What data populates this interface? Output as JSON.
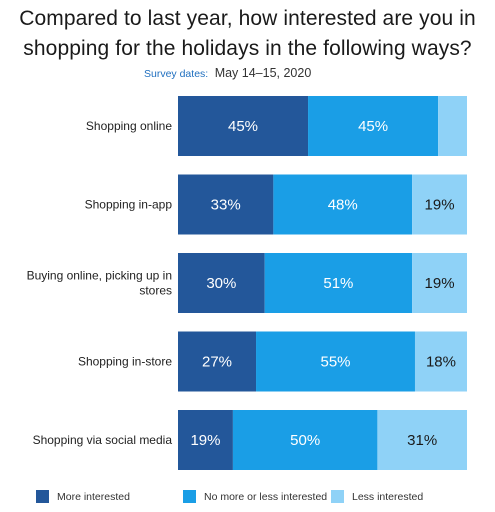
{
  "title": "Compared to last year, how interested are you in shopping for the holidays in the following ways?",
  "survey_label": "Survey dates:",
  "survey_dates": "May 14–15, 2020",
  "colors": {
    "more_interested": "#23579a",
    "no_more_or_less": "#1a9ee6",
    "less_interested": "#8fd2f7"
  },
  "chart_data": {
    "type": "bar",
    "orientation": "horizontal",
    "stacked": true,
    "title": "Compared to last year, how interested are you in shopping for the holidays in the following ways?",
    "categories": [
      [
        "Shopping online"
      ],
      [
        "Shopping in-app"
      ],
      [
        "Buying online, picking up in",
        "stores"
      ],
      [
        "Shopping in-store"
      ],
      [
        "Shopping via social media"
      ]
    ],
    "series": [
      {
        "name": "More interested",
        "values": [
          45,
          33,
          30,
          27,
          19
        ],
        "labels": [
          "45%",
          "33%",
          "30%",
          "27%",
          "19%"
        ]
      },
      {
        "name": "No more or less interested",
        "values": [
          45,
          48,
          51,
          55,
          50
        ],
        "labels": [
          "45%",
          "48%",
          "51%",
          "55%",
          "50%"
        ]
      },
      {
        "name": "Less interested",
        "values": [
          10,
          19,
          19,
          18,
          31
        ],
        "labels": [
          "",
          "19%",
          "19%",
          "18%",
          "31%"
        ]
      }
    ],
    "xlim": [
      0,
      100
    ],
    "legend_position": "bottom"
  }
}
